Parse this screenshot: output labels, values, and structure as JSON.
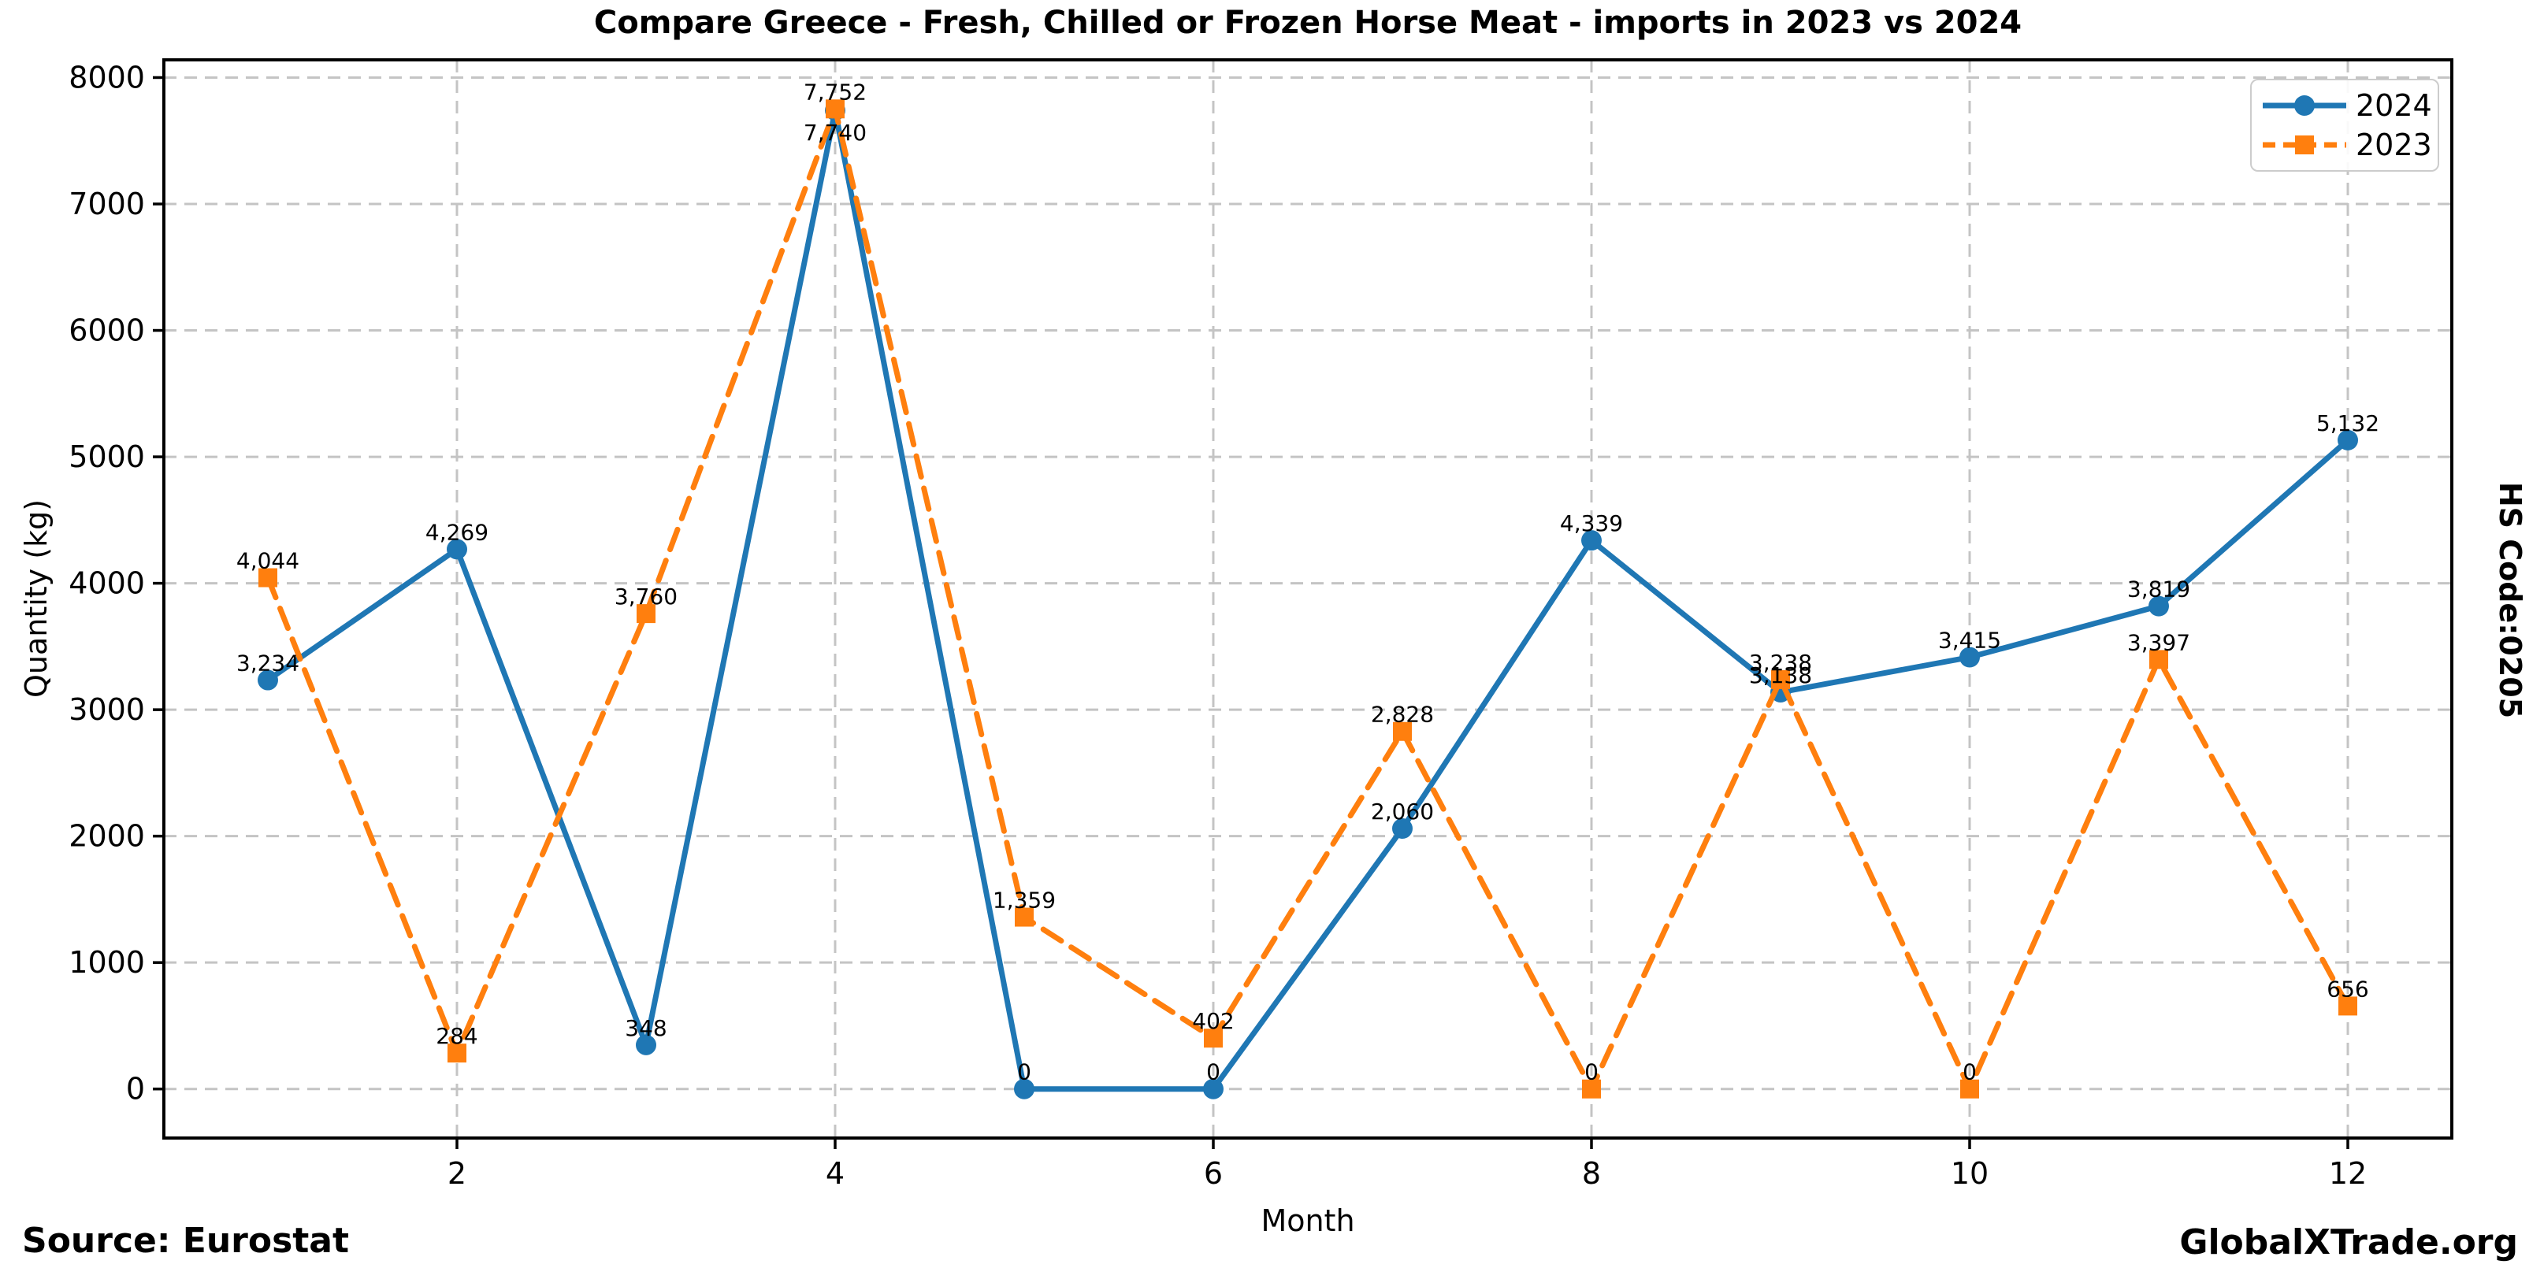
{
  "title": "Compare Greece - Fresh, Chilled or Frozen Horse Meat - imports in 2023 vs 2024",
  "axes": {
    "xlabel": "Month",
    "ylabel": "Quantity (kg)",
    "right_label": "HS Code:0205",
    "x_ticks": [
      "2",
      "4",
      "6",
      "8",
      "10",
      "12"
    ],
    "y_ticks": [
      "0",
      "1000",
      "2000",
      "3000",
      "4000",
      "5000",
      "6000",
      "7000",
      "8000"
    ]
  },
  "footer": {
    "source": "Source: Eurostat",
    "watermark": "GlobalXTrade.org"
  },
  "legend": [
    {
      "label": "2024",
      "color": "#1f77b4",
      "marker": "circle",
      "dash": "solid"
    },
    {
      "label": "2023",
      "color": "#ff7f0e",
      "marker": "square",
      "dash": "dashed"
    }
  ],
  "colors": {
    "series_2024": "#1f77b4",
    "series_2023": "#ff7f0e",
    "grid": "#c4c4c4",
    "spine": "#000000",
    "text": "#000000"
  },
  "chart_data": {
    "type": "line",
    "title": "Compare Greece - Fresh, Chilled or Frozen Horse Meat - imports in 2023 vs 2024",
    "xlabel": "Month",
    "ylabel": "Quantity (kg)",
    "x": [
      1,
      2,
      3,
      4,
      5,
      6,
      7,
      8,
      9,
      10,
      11,
      12
    ],
    "x_tick_values": [
      2,
      4,
      6,
      8,
      10,
      12
    ],
    "y_tick_values": [
      0,
      1000,
      2000,
      3000,
      4000,
      5000,
      6000,
      7000,
      8000
    ],
    "ylim": [
      0,
      8000
    ],
    "grid": true,
    "legend_position": "upper right",
    "series": [
      {
        "name": "2024",
        "color": "#1f77b4",
        "linestyle": "solid",
        "marker": "circle",
        "values": [
          3234,
          4269,
          348,
          7740,
          0,
          0,
          2060,
          4339,
          3138,
          3415,
          3819,
          5132
        ],
        "labels": [
          "3,234",
          "4,269",
          "348",
          "7,740",
          "0",
          "0",
          "2,060",
          "4,339",
          "3,138",
          "3,415",
          "3,819",
          "5,132"
        ]
      },
      {
        "name": "2023",
        "color": "#ff7f0e",
        "linestyle": "dashed",
        "marker": "square",
        "values": [
          4044,
          284,
          3760,
          7752,
          1359,
          402,
          2828,
          0,
          3238,
          0,
          3397,
          656
        ],
        "labels": [
          "4,044",
          "284",
          "3,760",
          "7,752",
          "1,359",
          "402",
          "2,828",
          "0",
          "3,238",
          "0",
          "3,397",
          "656"
        ]
      }
    ]
  }
}
